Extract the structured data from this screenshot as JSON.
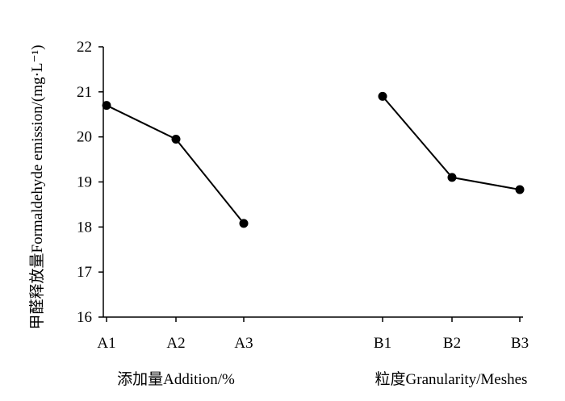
{
  "chart_data": {
    "type": "line",
    "ylabel": "甲醛释放量Formaldehyde emission/(mg·L⁻¹)",
    "ylim": [
      16,
      22
    ],
    "yticks": [
      16,
      17,
      18,
      19,
      20,
      21,
      22
    ],
    "grid": false,
    "categories": [
      "A1",
      "A2",
      "A3",
      "B1",
      "B2",
      "B3"
    ],
    "groups": [
      {
        "label": "添加量Addition/%",
        "categories": [
          "A1",
          "A2",
          "A3"
        ]
      },
      {
        "label": "粒度Granularity/Meshes",
        "categories": [
          "B1",
          "B2",
          "B3"
        ]
      }
    ],
    "series": [
      {
        "x": [
          "A1",
          "A2",
          "A3"
        ],
        "values": [
          20.7,
          19.95,
          18.08
        ]
      },
      {
        "x": [
          "B1",
          "B2",
          "B3"
        ],
        "values": [
          20.9,
          19.1,
          18.83
        ]
      }
    ],
    "color": "#000000"
  }
}
